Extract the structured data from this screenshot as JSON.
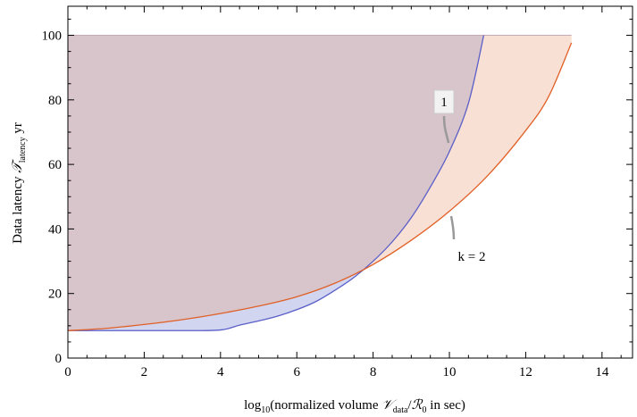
{
  "chart_data": {
    "type": "area",
    "x_axis": {
      "label_prefix": "log",
      "label_base": "10",
      "label_mid": "(normalized volume ",
      "label_var1": "𝒱",
      "label_var1_sub": "data",
      "label_slash": "/",
      "label_var2": "ℛ",
      "label_var2_sub": "0",
      "label_suffix": " in sec)",
      "range": [
        0,
        14.8
      ],
      "ticks": [
        0,
        2,
        4,
        6,
        8,
        10,
        12,
        14
      ]
    },
    "y_axis": {
      "label_main": "Data latency ",
      "label_var": "𝒯",
      "label_var_sub": "latency",
      "label_unit": " yr",
      "range": [
        0,
        109
      ],
      "ticks": [
        0,
        20,
        40,
        60,
        80,
        100
      ]
    },
    "series": [
      {
        "annotation": "1",
        "color": "#5a5fc8",
        "fill": "#d2d5ef",
        "points": [
          [
            0,
            8.5
          ],
          [
            1,
            8.5
          ],
          [
            2,
            8.5
          ],
          [
            3,
            8.5
          ],
          [
            4,
            8.7
          ],
          [
            4.5,
            10.2
          ],
          [
            5,
            11.5
          ],
          [
            5.5,
            13
          ],
          [
            6,
            15
          ],
          [
            6.5,
            17.5
          ],
          [
            7,
            21
          ],
          [
            7.5,
            25
          ],
          [
            8,
            30
          ],
          [
            8.5,
            36
          ],
          [
            9,
            43.5
          ],
          [
            9.5,
            53
          ],
          [
            10,
            64
          ],
          [
            10.5,
            79
          ],
          [
            10.9,
            100
          ]
        ]
      },
      {
        "annotation": "k = 2",
        "color": "#e06026",
        "fill": "#f7d5c7",
        "points": [
          [
            0,
            8.5
          ],
          [
            1,
            9.2
          ],
          [
            2,
            10.4
          ],
          [
            3,
            11.9
          ],
          [
            4,
            13.8
          ],
          [
            5,
            16.1
          ],
          [
            6,
            19
          ],
          [
            7,
            23.2
          ],
          [
            8,
            29
          ],
          [
            9,
            36.5
          ],
          [
            10,
            45.5
          ],
          [
            11,
            56.5
          ],
          [
            12,
            70.5
          ],
          [
            12.6,
            81
          ],
          [
            13.2,
            97.7
          ]
        ]
      }
    ],
    "upper_bound": 100,
    "overlap_fill": "#d8c4cb"
  }
}
